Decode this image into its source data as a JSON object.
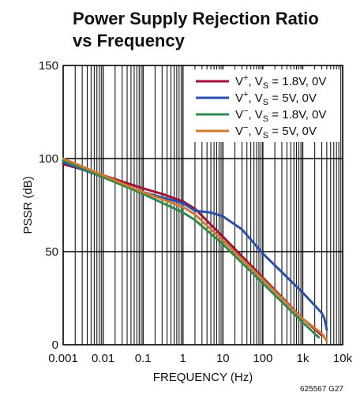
{
  "chart_data": {
    "type": "line",
    "title_line1": "Power Supply Rejection Ratio",
    "title_line2": "vs Frequency",
    "xlabel": "FREQUENCY (Hz)",
    "ylabel": "PSSR (dB)",
    "xscale": "log",
    "xlim": [
      0.001,
      10000
    ],
    "ylim": [
      0,
      150
    ],
    "grid": true,
    "legend_position": "top-right",
    "x_ticks": [
      {
        "v": 0.001,
        "label": "0.001"
      },
      {
        "v": 0.01,
        "label": "0.01"
      },
      {
        "v": 0.1,
        "label": "0.1"
      },
      {
        "v": 1,
        "label": "1"
      },
      {
        "v": 10,
        "label": "10"
      },
      {
        "v": 100,
        "label": "100"
      },
      {
        "v": 1000,
        "label": "1k"
      },
      {
        "v": 10000,
        "label": "10k"
      }
    ],
    "y_ticks": [
      {
        "v": 0,
        "label": "0"
      },
      {
        "v": 50,
        "label": "50"
      },
      {
        "v": 100,
        "label": "100"
      },
      {
        "v": 150,
        "label": "150"
      }
    ],
    "series": [
      {
        "name": "V+, VS = 1.8V, 0V",
        "legend": {
          "v": "V",
          "sup": "+",
          "sep": ", ",
          "vs": "V",
          "sub": "S",
          "rest": " = 1.8V, 0V"
        },
        "color": "#a0123a",
        "points": [
          [
            0.001,
            97
          ],
          [
            0.01,
            91
          ],
          [
            0.1,
            84
          ],
          [
            0.3,
            81
          ],
          [
            1,
            77
          ],
          [
            2,
            73
          ],
          [
            10,
            58
          ],
          [
            100,
            36
          ],
          [
            1000,
            14
          ],
          [
            3000,
            5
          ]
        ]
      },
      {
        "name": "V+, VS = 5V, 0V",
        "legend": {
          "v": "V",
          "sup": "+",
          "sep": ", ",
          "vs": "V",
          "sub": "S",
          "rest": " = 5V, 0V"
        },
        "color": "#2a4faf",
        "points": [
          [
            0.001,
            98
          ],
          [
            0.01,
            90
          ],
          [
            0.1,
            82
          ],
          [
            1,
            76
          ],
          [
            2,
            72
          ],
          [
            5,
            71
          ],
          [
            10,
            69
          ],
          [
            30,
            62
          ],
          [
            100,
            49
          ],
          [
            300,
            39
          ],
          [
            1000,
            28
          ],
          [
            3000,
            17
          ],
          [
            3500,
            14
          ],
          [
            4000,
            8
          ]
        ]
      },
      {
        "name": "V−, VS = 1.8V, 0V",
        "legend": {
          "v": "V",
          "sup": "−",
          "sep": ", ",
          "vs": "V",
          "sub": "S",
          "rest": " = 1.8V, 0V"
        },
        "color": "#2e8b4a",
        "points": [
          [
            0.001,
            99
          ],
          [
            0.01,
            90
          ],
          [
            0.1,
            81
          ],
          [
            1,
            71
          ],
          [
            2,
            67
          ],
          [
            10,
            54
          ],
          [
            100,
            33
          ],
          [
            1000,
            12
          ],
          [
            2500,
            4
          ]
        ]
      },
      {
        "name": "V−, VS = 5V, 0V",
        "legend": {
          "v": "V",
          "sup": "−",
          "sep": ", ",
          "vs": "V",
          "sub": "S",
          "rest": " = 5V, 0V"
        },
        "color": "#d07a30",
        "points": [
          [
            0.001,
            100
          ],
          [
            0.01,
            91
          ],
          [
            0.1,
            82
          ],
          [
            1,
            74
          ],
          [
            2,
            70
          ],
          [
            10,
            56
          ],
          [
            100,
            35
          ],
          [
            1000,
            14
          ],
          [
            3000,
            6
          ],
          [
            4000,
            2
          ]
        ]
      }
    ],
    "figure_code": "625567 G27"
  }
}
